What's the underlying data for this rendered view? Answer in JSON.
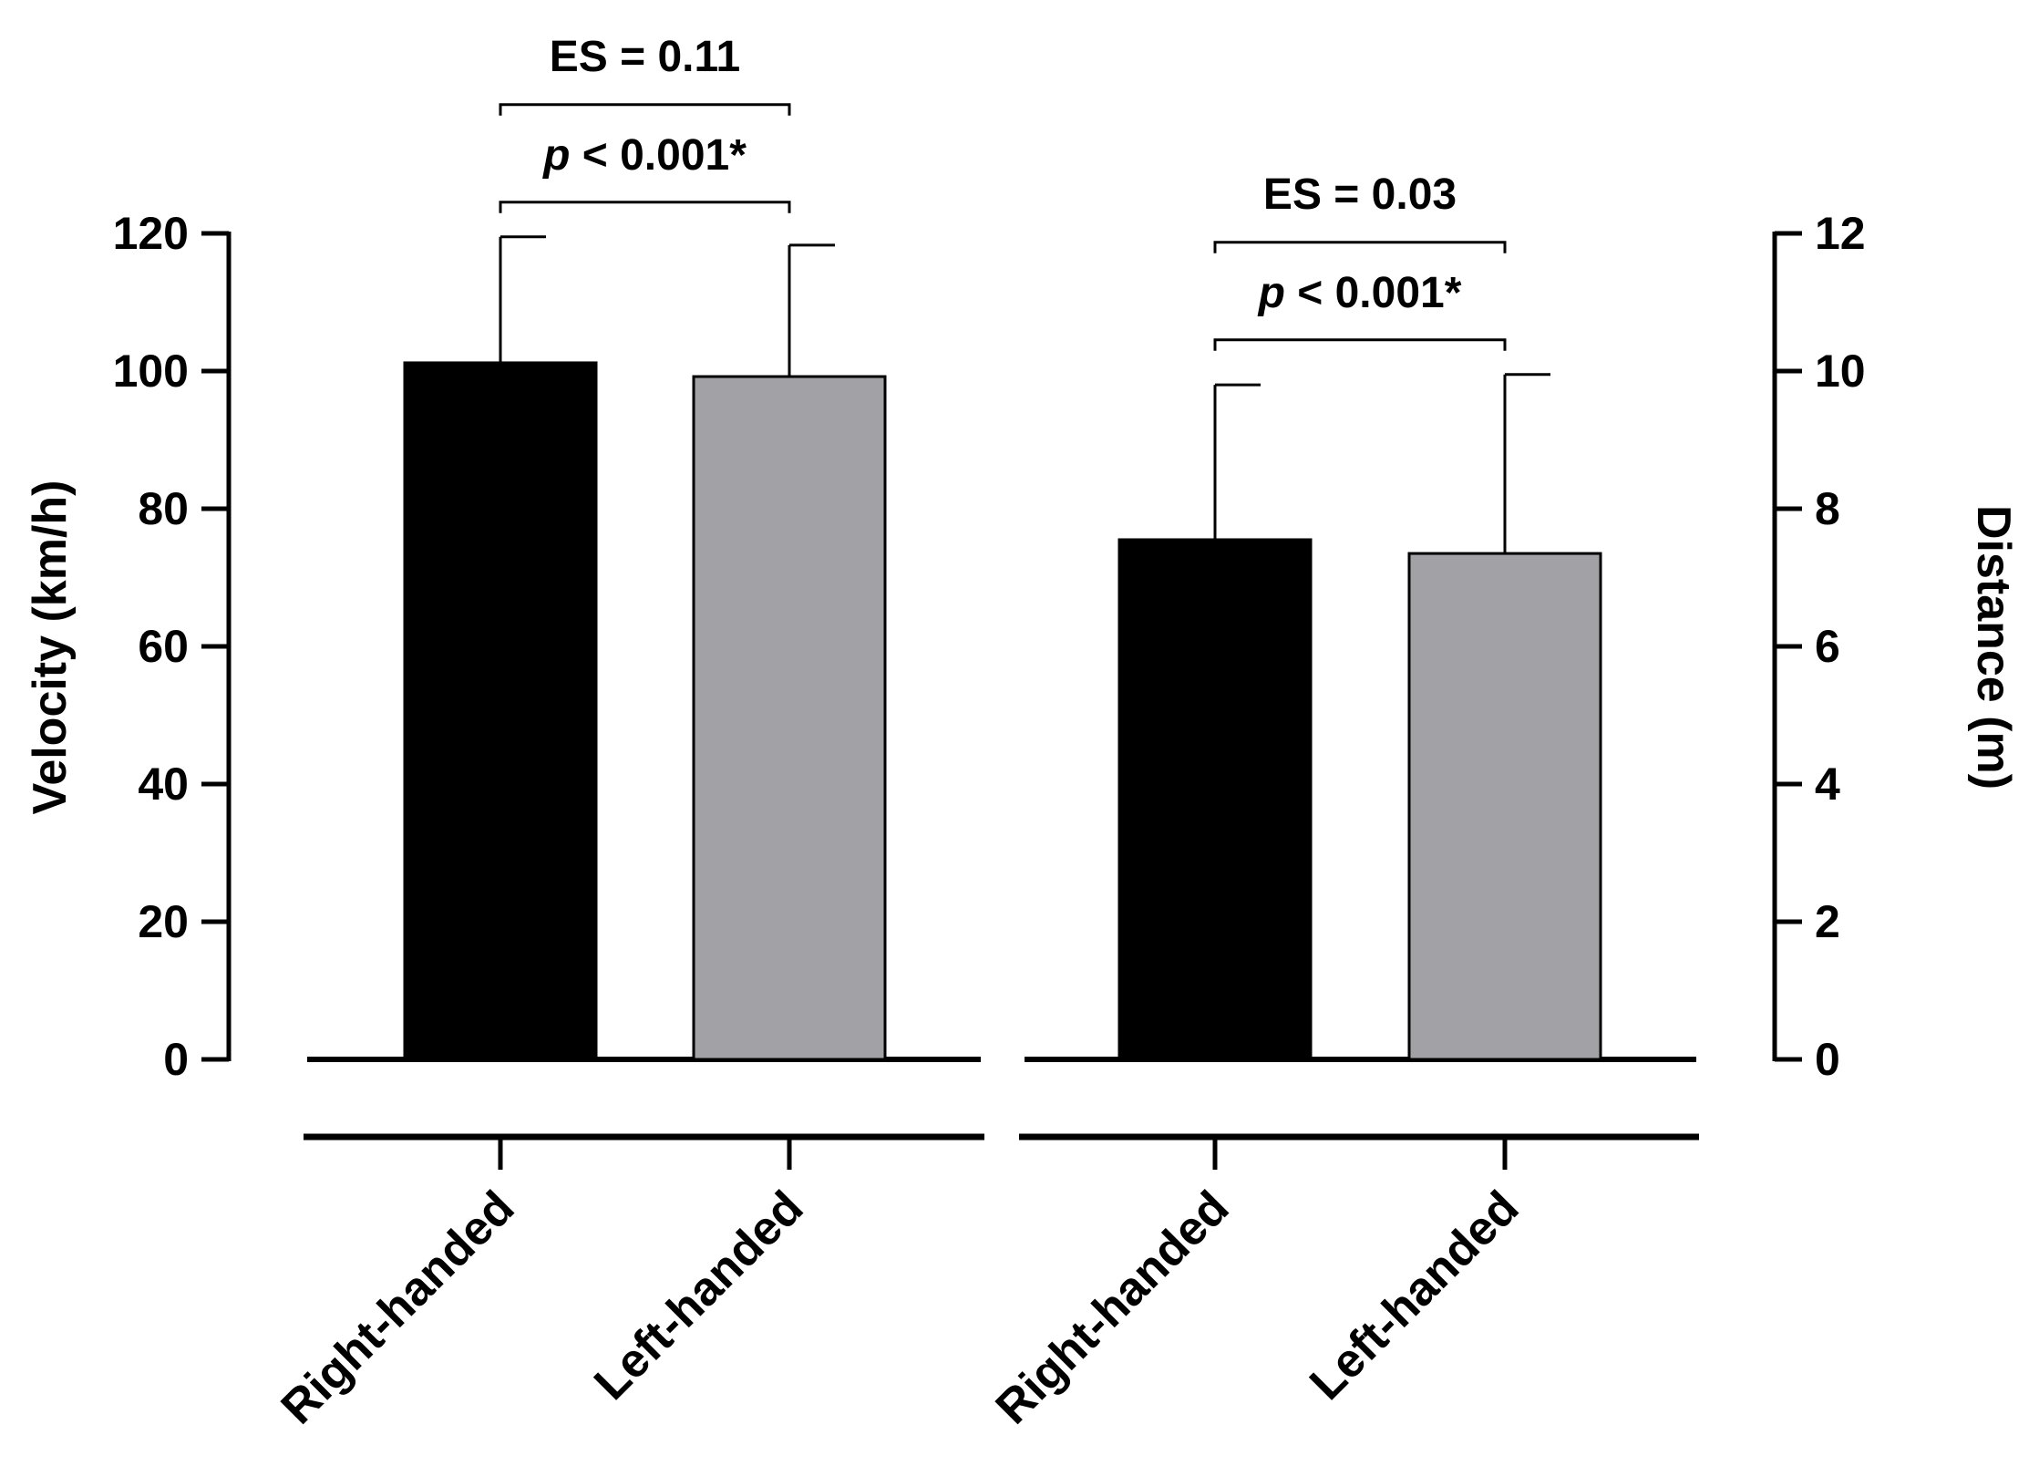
{
  "chart_data": {
    "type": "bar",
    "colors": {
      "right": "#000000",
      "left": "#a2a1a6",
      "axis": "#000000"
    },
    "left_axis": {
      "label": "Velocity (km/h)",
      "ylim": [
        0,
        120
      ],
      "ticks": [
        0,
        20,
        40,
        60,
        80,
        100,
        120
      ],
      "tick_labels": [
        "0",
        "20",
        "40",
        "60",
        "80",
        "100",
        "120"
      ]
    },
    "right_axis": {
      "label": "Distance (m)",
      "ylim": [
        0,
        12
      ],
      "ticks": [
        0,
        2,
        4,
        6,
        8,
        10,
        12
      ],
      "tick_labels": [
        "0",
        "2",
        "4",
        "6",
        "8",
        "10",
        "12"
      ]
    },
    "groups": [
      {
        "axis": "left",
        "bars": [
          {
            "category": "Right-handed",
            "value": 101.2,
            "sd": 18.3,
            "color_key": "right"
          },
          {
            "category": "Left-handed",
            "value": 99.2,
            "sd": 19.1,
            "color_key": "left"
          }
        ],
        "annotation": {
          "es": "ES = 0.11",
          "p_symbol": "p",
          "p_rest": " < 0.001*"
        }
      },
      {
        "axis": "right",
        "bars": [
          {
            "category": "Right-handed",
            "value": 7.55,
            "sd": 2.25,
            "color_key": "right"
          },
          {
            "category": "Left-handed",
            "value": 7.35,
            "sd": 2.6,
            "color_key": "left"
          }
        ],
        "annotation": {
          "es": "ES = 0.03",
          "p_symbol": "p",
          "p_rest": " < 0.001*"
        }
      }
    ]
  }
}
